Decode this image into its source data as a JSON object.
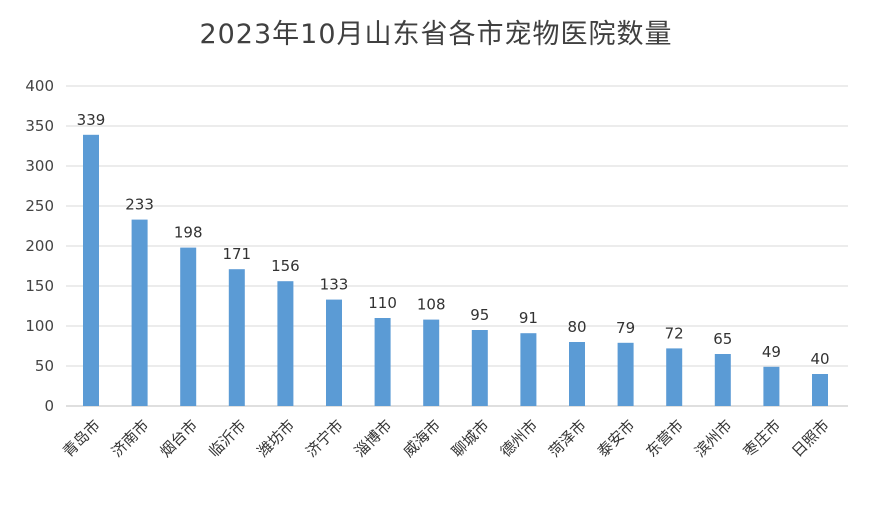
{
  "chart_data": {
    "type": "bar",
    "title": "2023年10月山东省各市宠物医院数量",
    "xlabel": "",
    "ylabel": "",
    "ylim": [
      0,
      400
    ],
    "yticks": [
      0,
      50,
      100,
      150,
      200,
      250,
      300,
      350,
      400
    ],
    "grid": true,
    "categories": [
      "青岛市",
      "济南市",
      "烟台市",
      "临沂市",
      "潍坊市",
      "济宁市",
      "淄博市",
      "威海市",
      "聊城市",
      "德州市",
      "菏泽市",
      "泰安市",
      "东营市",
      "滨州市",
      "枣庄市",
      "日照市"
    ],
    "values": [
      339,
      233,
      198,
      171,
      156,
      133,
      110,
      108,
      95,
      91,
      80,
      79,
      72,
      65,
      49,
      40
    ],
    "bar_color": "#5b9bd5"
  }
}
